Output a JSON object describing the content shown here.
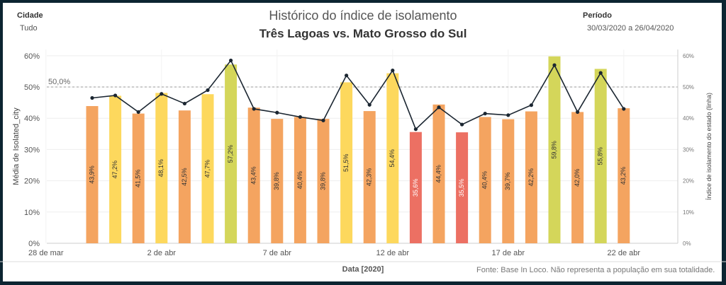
{
  "filters": {
    "city_label": "Cidade",
    "city_value": "Tudo",
    "period_label": "Período",
    "period_value": "30/03/2020 a 26/04/2020"
  },
  "titles": {
    "title": "Histórico do índice de isolamento",
    "subtitle": "Três Lagoas vs. Mato Grosso do Sul"
  },
  "footnote": "Fonte: Base In Loco. Não representa a população em sua totalidade.",
  "colors": {
    "low": "#ec7063",
    "mid": "#f4a460",
    "high": "#fdd85d",
    "very_high": "#d4d65a",
    "line": "#1b2631",
    "reference": "#999999"
  },
  "chart_data": {
    "type": "bar",
    "xlabel": "Data [2020]",
    "ylabel": "Média de Isolated_city",
    "y2label": "Índice de isolamento do estado (linha)",
    "ylim": [
      0,
      62
    ],
    "yticks": [
      "0%",
      "10%",
      "20%",
      "30%",
      "40%",
      "50%",
      "60%"
    ],
    "xticks": [
      "28 de mar",
      "2 de abr",
      "7 de abr",
      "12 de abr",
      "17 de abr",
      "22 de abr"
    ],
    "reference_line": {
      "value": 50,
      "label": "50,0%"
    },
    "categories": [
      "30/03",
      "31/03",
      "01/04",
      "02/04",
      "03/04",
      "04/04",
      "05/04",
      "06/04",
      "07/04",
      "08/04",
      "09/04",
      "10/04",
      "11/04",
      "12/04",
      "13/04",
      "14/04",
      "15/04",
      "16/04",
      "17/04",
      "18/04",
      "19/04",
      "20/04",
      "21/04",
      "22/04"
    ],
    "series": [
      {
        "kind": "bar",
        "values": [
          43.9,
          47.2,
          41.5,
          48.1,
          42.5,
          47.7,
          57.2,
          43.4,
          39.8,
          40.4,
          39.8,
          51.5,
          42.3,
          54.4,
          35.6,
          44.4,
          35.5,
          40.4,
          39.7,
          42.2,
          59.8,
          42.0,
          55.8,
          43.2
        ],
        "labels": [
          "43,9%",
          "47,2%",
          "41,5%",
          "48,1%",
          "42,5%",
          "47,7%",
          "57,2%",
          "43,4%",
          "39,8%",
          "40,4%",
          "39,8%",
          "51,5%",
          "42,3%",
          "54,4%",
          "35,6%",
          "44,4%",
          "35,5%",
          "40,4%",
          "39,7%",
          "42,2%",
          "59,8%",
          "42,0%",
          "55,8%",
          "43,2%"
        ],
        "color_class": [
          "mid",
          "high",
          "mid",
          "high",
          "mid",
          "high",
          "very_high",
          "mid",
          "mid",
          "mid",
          "mid",
          "high",
          "mid",
          "high",
          "low",
          "mid",
          "low",
          "mid",
          "mid",
          "mid",
          "very_high",
          "mid",
          "very_high",
          "mid"
        ]
      },
      {
        "kind": "line",
        "values": [
          46.5,
          47.3,
          42.0,
          47.8,
          44.7,
          49.0,
          58.5,
          43.0,
          41.8,
          40.4,
          39.3,
          53.7,
          44.3,
          55.3,
          36.5,
          43.5,
          38.0,
          41.5,
          41.0,
          44.2,
          57.0,
          42.0,
          54.5,
          43.0
        ]
      }
    ]
  }
}
